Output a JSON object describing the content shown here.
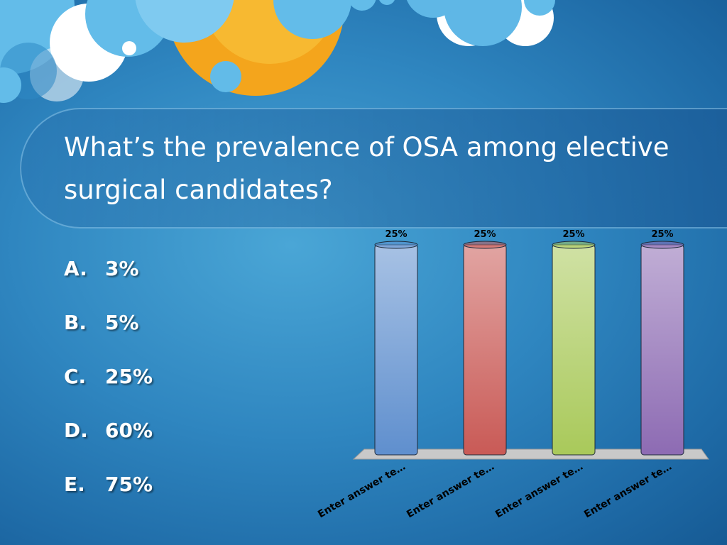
{
  "slide": {
    "question": "What’s the prevalence of OSA among elective surgical candidates?",
    "options": [
      {
        "letter": "A.",
        "text": "3%"
      },
      {
        "letter": "B.",
        "text": "5%"
      },
      {
        "letter": "C.",
        "text": "25%"
      },
      {
        "letter": "D.",
        "text": "60%"
      },
      {
        "letter": "E.",
        "text": "75%"
      }
    ]
  },
  "chart_data": {
    "type": "bar",
    "categories": [
      "Enter answer te…",
      "Enter answer te…",
      "Enter answer te…",
      "Enter answer te…"
    ],
    "values": [
      25,
      25,
      25,
      25
    ],
    "value_labels": [
      "25%",
      "25%",
      "25%",
      "25%"
    ],
    "ylim": [
      0,
      25
    ],
    "colors": [
      "#5f8fce",
      "#c95a56",
      "#a9c95a",
      "#8d6bb3"
    ],
    "grid": false,
    "legend": "none",
    "title": "",
    "xlabel": "",
    "ylabel": ""
  }
}
